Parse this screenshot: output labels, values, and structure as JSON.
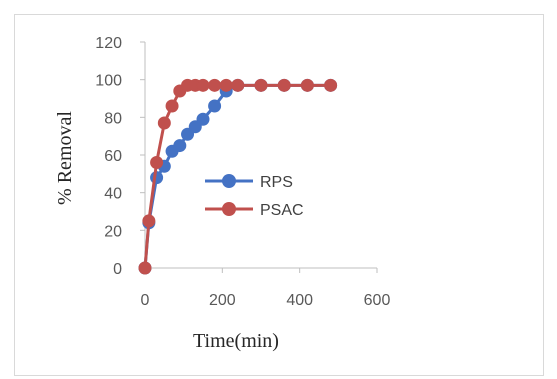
{
  "chart_data": {
    "type": "line",
    "title": "",
    "xlabel": "Time(min)",
    "ylabel": "% Removal",
    "xlim": [
      0,
      600
    ],
    "ylim": [
      0,
      120
    ],
    "xticks": [
      0,
      200,
      400,
      600
    ],
    "yticks": [
      0,
      20,
      40,
      60,
      80,
      100,
      120
    ],
    "grid": false,
    "legend_position": "center-right",
    "series": [
      {
        "name": "RPS",
        "color": "#4472c4",
        "x": [
          0,
          10,
          30,
          50,
          70,
          90,
          110,
          130,
          150,
          180,
          210,
          240,
          300,
          360,
          420,
          480
        ],
        "y": [
          0,
          24,
          48,
          54,
          62,
          65,
          71,
          75,
          79,
          86,
          94,
          97,
          97,
          97,
          97,
          97
        ]
      },
      {
        "name": "PSAC",
        "color": "#c0504d",
        "x": [
          0,
          10,
          30,
          50,
          70,
          90,
          110,
          130,
          150,
          180,
          210,
          240,
          300,
          360,
          420,
          480
        ],
        "y": [
          0,
          25,
          56,
          77,
          86,
          94,
          97,
          97,
          97,
          97,
          97,
          97,
          97,
          97,
          97,
          97
        ]
      }
    ]
  }
}
